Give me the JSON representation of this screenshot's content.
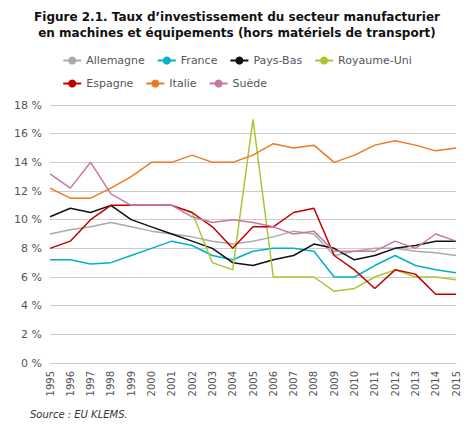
{
  "chart_data": {
    "type": "line",
    "title": "Figure 2.1. Taux d’investissement du secteur manufacturier",
    "subtitle": "en machines et équipements (hors matériels de transport)",
    "annotations": [
      "Source : EU KLEMS."
    ],
    "x": [
      1995,
      1996,
      1997,
      1998,
      1999,
      2000,
      2001,
      2002,
      2003,
      2004,
      2005,
      2006,
      2007,
      2008,
      2009,
      2010,
      2011,
      2012,
      2013,
      2014,
      2015
    ],
    "series": [
      {
        "name": "Allemagne",
        "color": "#aaaaaa",
        "values": [
          9.0,
          9.3,
          9.5,
          9.8,
          9.5,
          9.2,
          9.0,
          8.8,
          8.5,
          8.3,
          8.5,
          8.8,
          9.2,
          9.0,
          7.5,
          7.8,
          8.0,
          8.0,
          7.8,
          7.7,
          7.5
        ]
      },
      {
        "name": "France",
        "color": "#00b0c8",
        "values": [
          7.2,
          7.2,
          6.9,
          7.0,
          7.5,
          8.0,
          8.5,
          8.2,
          7.5,
          7.2,
          7.8,
          8.0,
          8.0,
          7.8,
          6.0,
          6.0,
          6.8,
          7.5,
          6.8,
          6.5,
          6.3
        ]
      },
      {
        "name": "Pays-Bas",
        "color": "#111111",
        "values": [
          10.2,
          10.8,
          10.5,
          11.0,
          10.0,
          9.5,
          9.0,
          8.5,
          8.0,
          7.0,
          6.8,
          7.2,
          7.5,
          8.3,
          8.0,
          7.2,
          7.5,
          8.0,
          8.2,
          8.5,
          8.5
        ]
      },
      {
        "name": "Royaume-Uni",
        "color": "#a8c832",
        "values": [
          null,
          null,
          null,
          null,
          11.0,
          11.0,
          11.0,
          10.5,
          7.0,
          6.5,
          17.0,
          6.0,
          6.0,
          6.0,
          5.0,
          5.2,
          6.0,
          6.5,
          6.0,
          6.0,
          5.8
        ]
      },
      {
        "name": "Espagne",
        "color": "#c00000",
        "values": [
          8.0,
          8.5,
          10.0,
          11.0,
          11.0,
          11.0,
          11.0,
          10.5,
          9.5,
          8.0,
          9.5,
          9.5,
          10.5,
          10.8,
          7.5,
          6.5,
          5.2,
          6.5,
          6.2,
          4.8,
          4.8
        ]
      },
      {
        "name": "Italie",
        "color": "#f07820",
        "values": [
          12.2,
          11.5,
          11.5,
          12.2,
          13.0,
          14.0,
          14.0,
          14.5,
          14.0,
          14.0,
          14.5,
          15.3,
          15.0,
          15.2,
          14.0,
          14.5,
          15.2,
          15.5,
          15.2,
          14.8,
          15.0
        ]
      },
      {
        "name": "Suède",
        "color": "#c878a0",
        "values": [
          13.2,
          12.2,
          14.0,
          11.8,
          11.0,
          11.0,
          11.0,
          10.2,
          9.8,
          10.0,
          9.8,
          9.5,
          9.0,
          9.2,
          7.8,
          7.8,
          7.8,
          8.5,
          8.0,
          9.0,
          8.5
        ]
      }
    ],
    "xlim": [
      1995,
      2015
    ],
    "xticks": [
      1995,
      1996,
      1997,
      1998,
      1999,
      2000,
      2001,
      2002,
      2003,
      2004,
      2005,
      2006,
      2007,
      2008,
      2009,
      2010,
      2011,
      2012,
      2013,
      2014,
      2015
    ],
    "ylim": [
      0,
      18
    ],
    "yticks": [
      {
        "value": 0,
        "label": "0 %"
      },
      {
        "value": 2,
        "label": "2 %"
      },
      {
        "value": 4,
        "label": "4 %"
      },
      {
        "value": 6,
        "label": "6 %"
      },
      {
        "value": 8,
        "label": "8 %"
      },
      {
        "value": 10,
        "label": "10 %"
      },
      {
        "value": 12,
        "label": "12 %"
      },
      {
        "value": 14,
        "label": "14 %"
      },
      {
        "value": 16,
        "label": "16 %"
      },
      {
        "value": 18,
        "label": "18 %"
      }
    ],
    "grid": true,
    "legend": "top"
  }
}
